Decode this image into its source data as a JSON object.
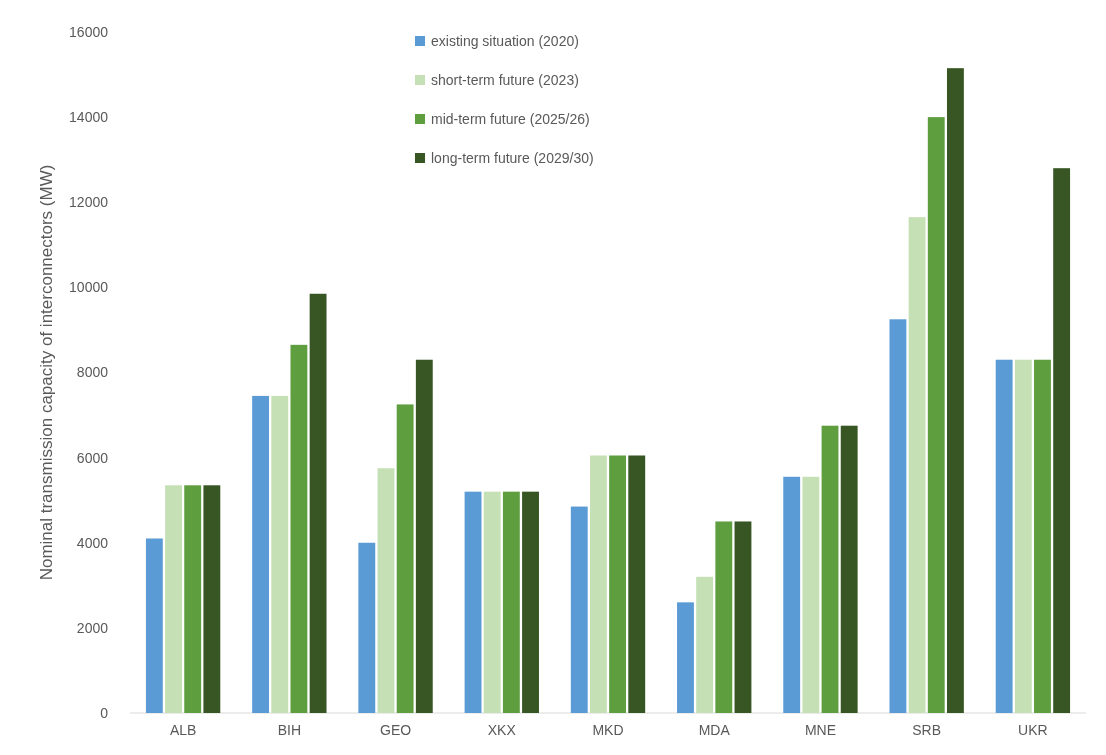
{
  "chart_data": {
    "type": "bar",
    "ylabel": "Nominal transmission capacity of interconnectors (MW)",
    "categories": [
      "ALB",
      "BIH",
      "GEO",
      "XKX",
      "MKD",
      "MDA",
      "MNE",
      "SRB",
      "UKR"
    ],
    "series": [
      {
        "name": "existing situation (2020)",
        "color": "#5b9bd5",
        "values": [
          4100,
          7450,
          4000,
          5200,
          4850,
          2600,
          5550,
          9250,
          8300
        ]
      },
      {
        "name": "short-term future (2023)",
        "color": "#c5e0b4",
        "values": [
          5350,
          7450,
          5750,
          5200,
          6050,
          3200,
          5550,
          11650,
          8300
        ]
      },
      {
        "name": "mid-term future (2025/26)",
        "color": "#5e9e3e",
        "values": [
          5350,
          8650,
          7250,
          5200,
          6050,
          4500,
          6750,
          14000,
          8300
        ]
      },
      {
        "name": "long-term future (2029/30)",
        "color": "#375623",
        "values": [
          5350,
          9850,
          8300,
          5200,
          6050,
          4500,
          6750,
          15150,
          12800
        ]
      }
    ],
    "ylim": [
      0,
      16000
    ],
    "yticks": [
      0,
      2000,
      4000,
      6000,
      8000,
      10000,
      12000,
      14000,
      16000
    ],
    "grid": false,
    "legend": "top"
  }
}
